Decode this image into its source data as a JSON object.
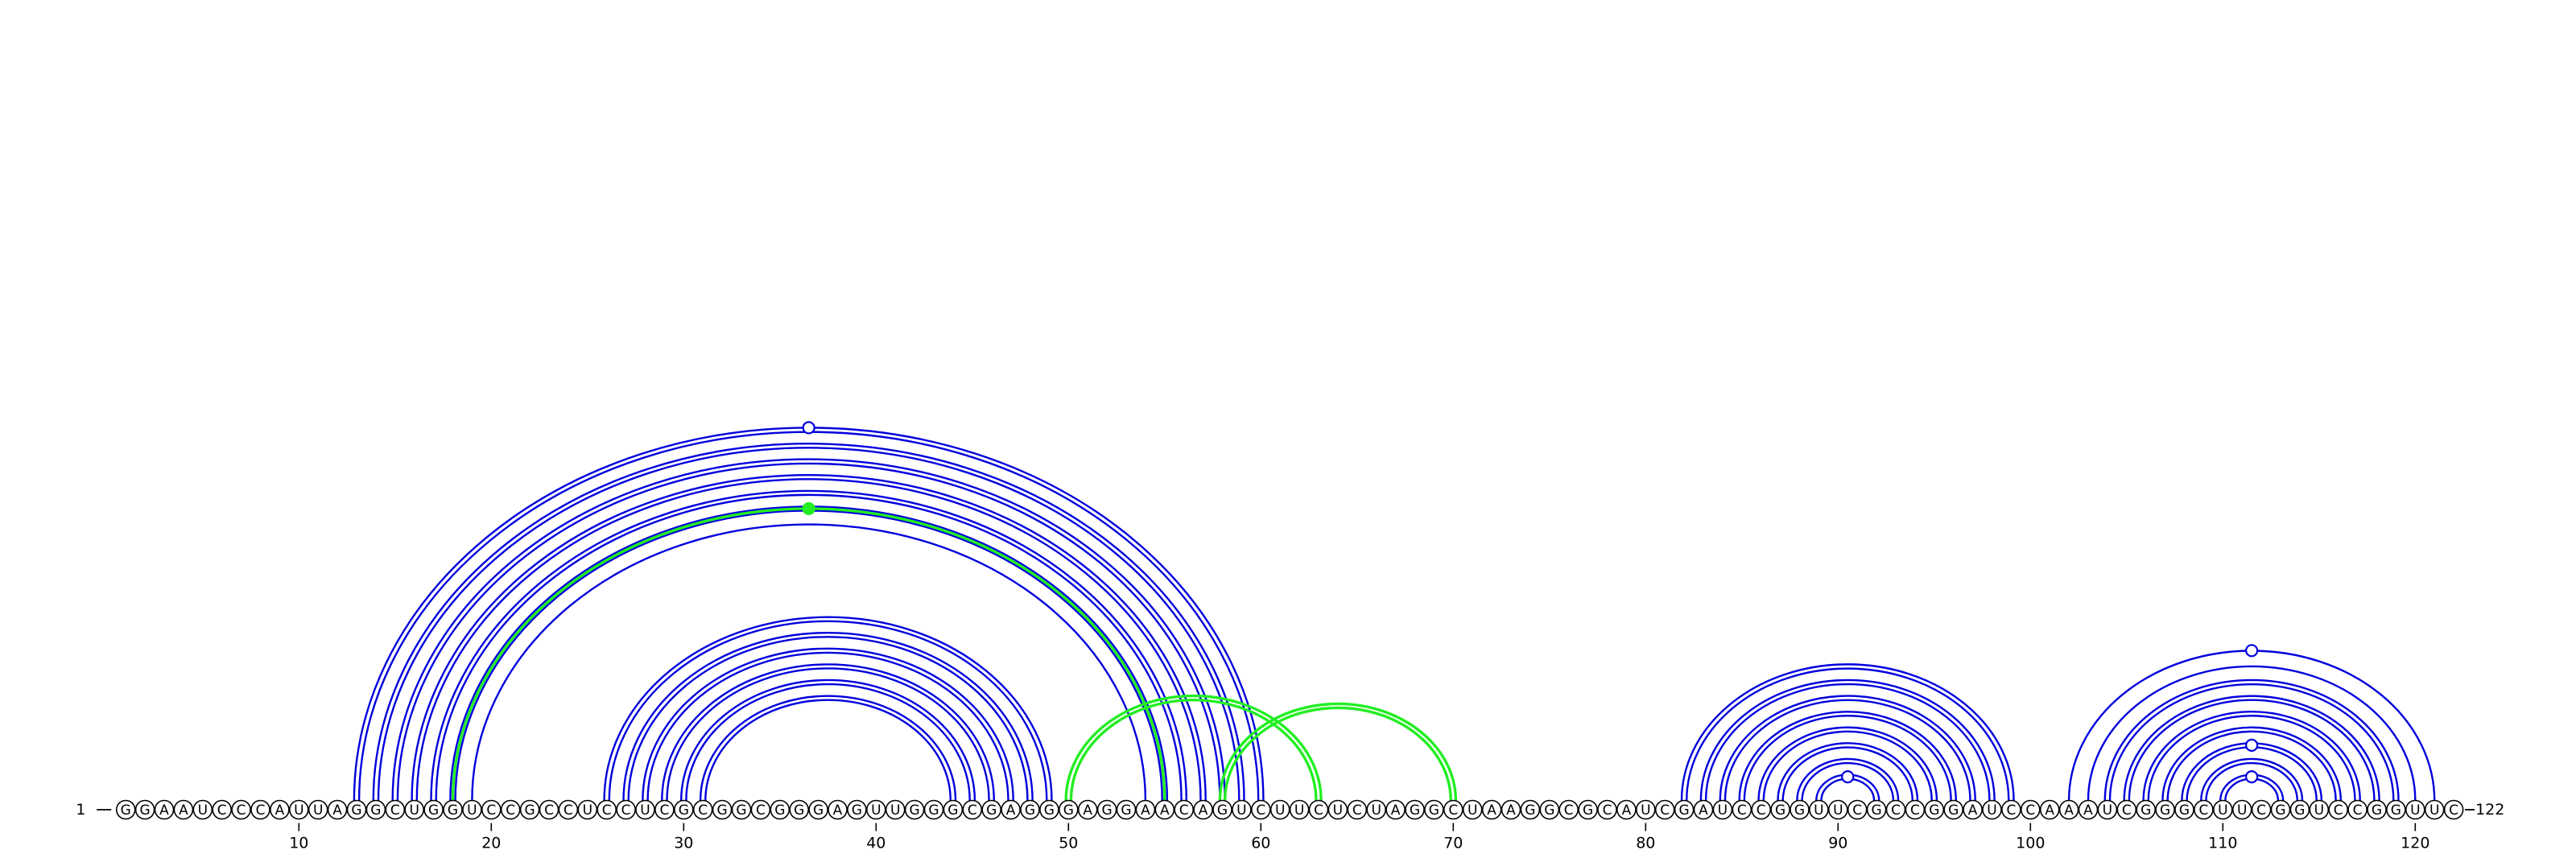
{
  "chart_data": {
    "type": "arc-diagram",
    "sequence": "GGAAUCCCAUUAGGCUGGUCCGCCUCCUCGCGGCGGGAGUUGGGCGAGGGAGGAACAGUCUUCUCUAGGCUAAGGCGCAUCGAUCCGGUUCGCCGGAUCCAAAUCGGGCUUCGGUCCGGUUC",
    "start_label": "1",
    "end_label": "122",
    "ticks": [
      10,
      20,
      30,
      40,
      50,
      60,
      70,
      80,
      90,
      100,
      110,
      120
    ],
    "colors": {
      "helix": "#0000dd",
      "pseudoknot": "#22ee22",
      "outline": "#000000"
    },
    "helices": [
      {
        "color": "helix",
        "start5": 13,
        "start3": 60,
        "length": 6,
        "double": true
      },
      {
        "color": "pseudoknot",
        "start5": 18,
        "start3": 55,
        "length": 1,
        "double": false
      },
      {
        "color": "helix",
        "start5": 19,
        "start3": 54,
        "length": 1,
        "double": false
      },
      {
        "color": "helix",
        "start5": 26,
        "start3": 49,
        "length": 6,
        "double": true
      },
      {
        "color": "pseudoknot",
        "start5": 50,
        "start3": 63,
        "length": 1,
        "double": true
      },
      {
        "color": "pseudoknot",
        "start5": 58,
        "start3": 70,
        "length": 1,
        "double": true
      },
      {
        "color": "helix",
        "start5": 82,
        "start3": 99,
        "length": 8,
        "double": true
      },
      {
        "color": "helix",
        "start5": 102,
        "start3": 121,
        "length": 2,
        "double": false
      },
      {
        "color": "helix",
        "start5": 104,
        "start3": 119,
        "length": 7,
        "double": true
      }
    ],
    "markers": [
      {
        "pair": [
          13,
          60
        ],
        "style": "open",
        "color": "helix"
      },
      {
        "pair": [
          18,
          55
        ],
        "style": "filled",
        "color": "pseudoknot"
      },
      {
        "pair": [
          89,
          92
        ],
        "style": "open",
        "color": "helix"
      },
      {
        "pair": [
          102,
          121
        ],
        "style": "open",
        "color": "helix"
      },
      {
        "pair": [
          108,
          115
        ],
        "style": "open",
        "color": "helix"
      },
      {
        "pair": [
          110,
          113
        ],
        "style": "open",
        "color": "helix"
      }
    ]
  }
}
